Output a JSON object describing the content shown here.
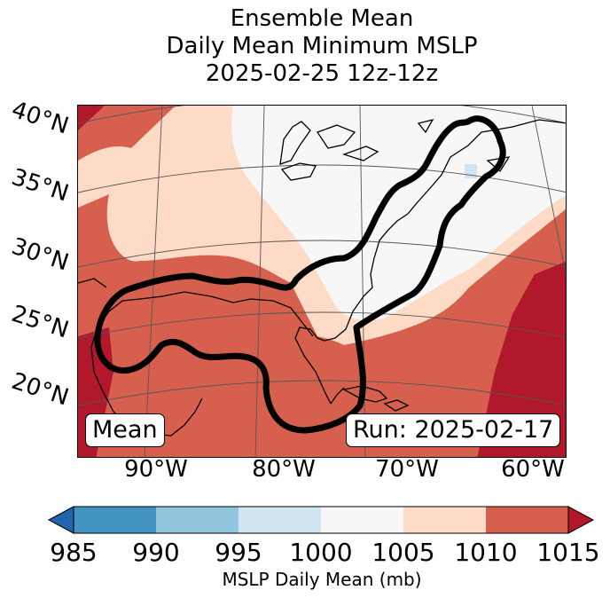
{
  "title": {
    "line1": "Ensemble Mean",
    "line2": "Daily Mean Minimum MSLP",
    "line3": "2025-02-25 12z-12z"
  },
  "map": {
    "region": "Gulf of Mexico, eastern United States and western North Atlantic",
    "lat_labels": [
      "40°N",
      "35°N",
      "30°N",
      "25°N",
      "20°N"
    ],
    "lon_labels": [
      "90°W",
      "80°W",
      "70°W",
      "60°W"
    ],
    "mean_badge": "Mean",
    "run_badge": "Run: 2025-02-17"
  },
  "colorbar": {
    "label": "MSLP Daily Mean (mb)",
    "ticks": [
      "985",
      "990",
      "995",
      "1000",
      "1005",
      "1010",
      "1015"
    ],
    "bins": [
      {
        "range": "<985",
        "color": "#2166ac"
      },
      {
        "range": "985-990",
        "color": "#4393c3"
      },
      {
        "range": "990-995",
        "color": "#92c5de"
      },
      {
        "range": "995-1000",
        "color": "#d1e5f0"
      },
      {
        "range": "1000-1005",
        "color": "#f7f7f7"
      },
      {
        "range": "1005-1010",
        "color": "#fddbc7"
      },
      {
        "range": "1010-1015",
        "color": "#d6604d"
      },
      {
        "range": ">1015",
        "color": "#b2182b"
      }
    ]
  },
  "colors": {
    "below_1000": "#d1e5f0",
    "range_1000_1005": "#f7f7f7",
    "range_1005_1010": "#fddbc7",
    "range_1010_1015": "#d6604d",
    "above_1015": "#b2182b",
    "contour": "#000000"
  }
}
